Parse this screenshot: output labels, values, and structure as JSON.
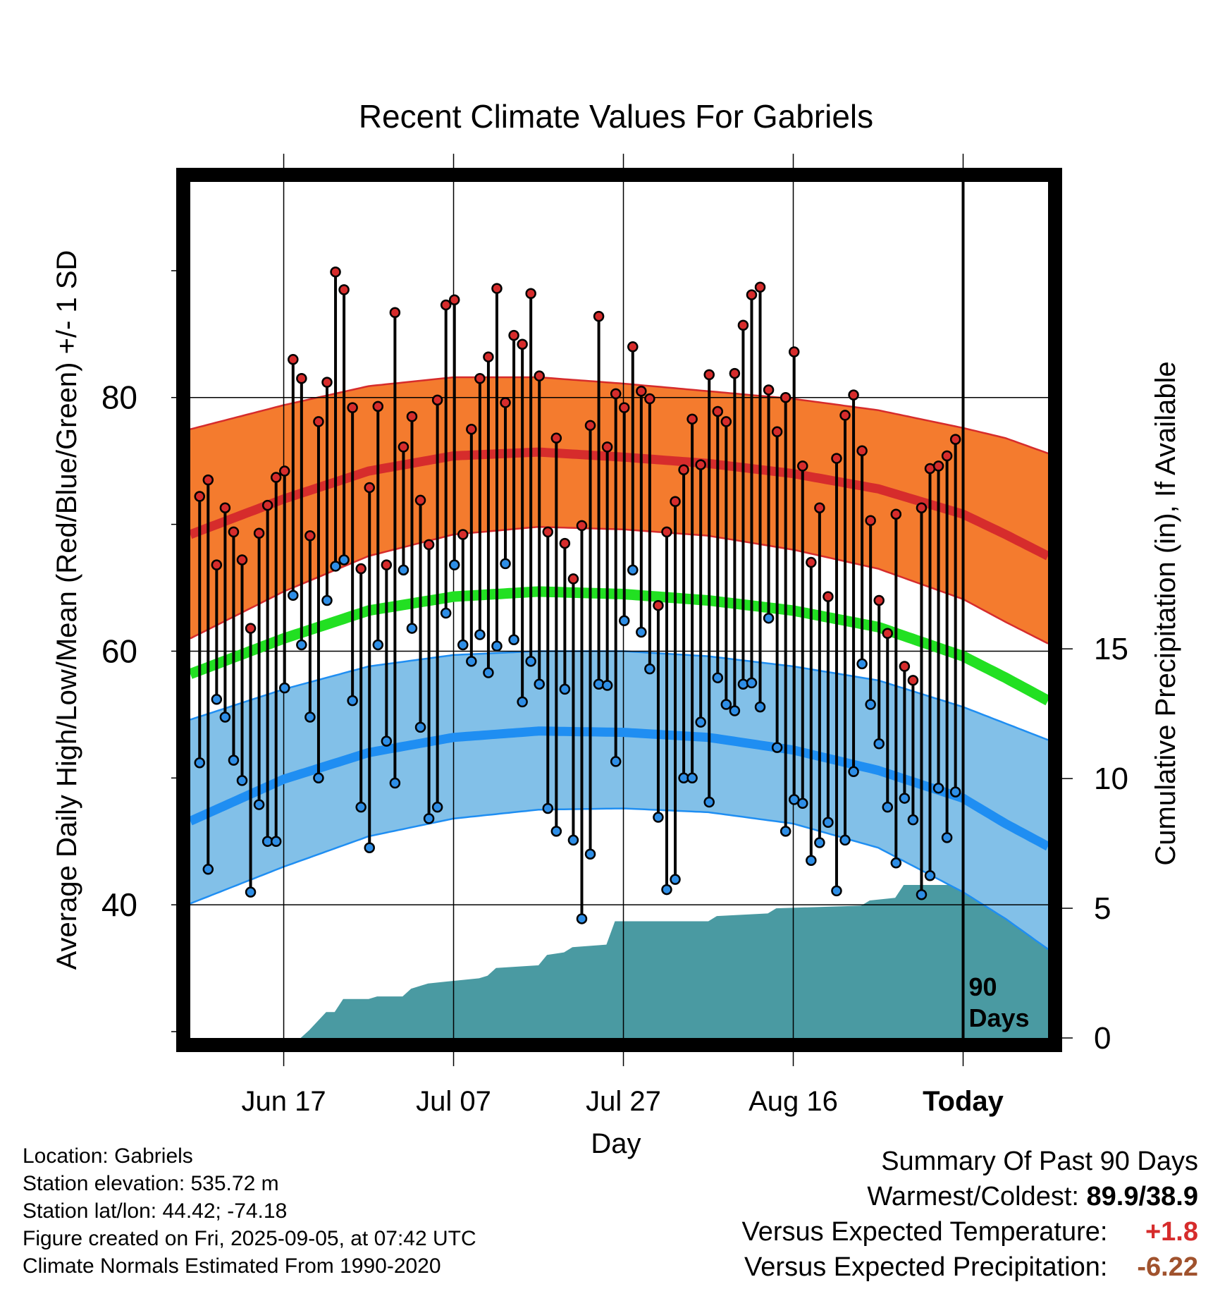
{
  "chart_data": {
    "type": "line",
    "title": "Recent Climate Values For Gabriels",
    "xlabel": "Day",
    "ylabel": "Average Daily High/Low/Mean (Red/Blue/Green) +/- 1 SD",
    "y2label": "Cumulative Precipitation (in), If Available",
    "x_ticks": [
      "Jun 17",
      "Jul 07",
      "Jul 27",
      "Aug 16",
      "Today"
    ],
    "x_tick_days": [
      10,
      30,
      50,
      70,
      90
    ],
    "x_range": [
      -1,
      100
    ],
    "y_ticks": [
      40,
      60,
      80
    ],
    "ylim": [
      29.5,
      97
    ],
    "y2_ticks": [
      0,
      5,
      10,
      15
    ],
    "y2lim": [
      0,
      33
    ],
    "today_label": "90\nDays",
    "series": [
      {
        "name": "Daily High",
        "color": "#d62c2c",
        "values": [
          72.2,
          73.5,
          66.8,
          71.3,
          69.4,
          67.2,
          61.8,
          69.3,
          71.5,
          73.7,
          74.2,
          83.0,
          81.5,
          69.1,
          78.1,
          81.2,
          89.9,
          88.5,
          79.2,
          66.5,
          72.9,
          79.3,
          66.8,
          86.7,
          76.1,
          78.5,
          71.9,
          68.4,
          79.8,
          87.3,
          87.7,
          69.2,
          77.5,
          81.5,
          83.2,
          88.6,
          79.6,
          84.9,
          84.2,
          88.2,
          81.7,
          69.4,
          76.8,
          68.5,
          65.7,
          69.9,
          77.8,
          86.4,
          76.1,
          80.3,
          79.2,
          84.0,
          80.5,
          79.9,
          63.6,
          69.4,
          71.8,
          74.3,
          78.3,
          74.7,
          81.8,
          78.9,
          78.1,
          81.9,
          85.7,
          88.1,
          88.7,
          80.6,
          77.3,
          80.0,
          83.6,
          74.6,
          67.0,
          71.3,
          64.3,
          75.2,
          78.6,
          80.2,
          75.8,
          70.3,
          64.0,
          61.4,
          70.8,
          58.8,
          57.7,
          71.3,
          74.4,
          74.6,
          75.4,
          76.7
        ]
      },
      {
        "name": "Daily Low",
        "color": "#2e8ee6",
        "values": [
          51.2,
          42.8,
          56.2,
          54.8,
          51.4,
          49.8,
          41.0,
          47.9,
          45.0,
          45.0,
          57.1,
          64.4,
          60.5,
          54.8,
          50.0,
          64.0,
          66.7,
          67.2,
          56.1,
          47.7,
          44.5,
          60.5,
          52.9,
          49.6,
          66.4,
          61.8,
          54.0,
          46.8,
          47.7,
          63.0,
          66.8,
          60.5,
          59.2,
          61.3,
          58.3,
          60.4,
          66.9,
          60.9,
          56.0,
          59.2,
          57.4,
          47.6,
          45.8,
          57.0,
          45.1,
          38.9,
          44.0,
          57.4,
          57.3,
          51.3,
          62.4,
          66.4,
          61.5,
          58.6,
          46.9,
          41.2,
          42.0,
          50.0,
          50.0,
          54.4,
          48.1,
          57.9,
          55.8,
          55.3,
          57.4,
          57.5,
          55.6,
          62.6,
          52.4,
          45.8,
          48.3,
          48.0,
          43.5,
          44.9,
          46.5,
          41.1,
          45.1,
          50.5,
          59.0,
          55.8,
          52.7,
          47.7,
          43.3,
          48.4,
          46.7,
          40.8,
          42.3,
          49.2,
          45.3,
          48.9
        ]
      },
      {
        "name": "Expected High (mean +/- 1 SD)",
        "color": "#d62c2c",
        "band_color": "#f47b2e",
        "mean": [
          [
            -1,
            69.2
          ],
          [
            10,
            72.0
          ],
          [
            20,
            74.2
          ],
          [
            30,
            75.4
          ],
          [
            40,
            75.7
          ],
          [
            50,
            75.3
          ],
          [
            60,
            74.8
          ],
          [
            70,
            74.0
          ],
          [
            80,
            72.8
          ],
          [
            90,
            70.8
          ],
          [
            95,
            69.2
          ],
          [
            100,
            67.5
          ]
        ],
        "upper": [
          [
            -1,
            77.5
          ],
          [
            10,
            79.4
          ],
          [
            20,
            80.9
          ],
          [
            30,
            81.6
          ],
          [
            40,
            81.6
          ],
          [
            50,
            81.1
          ],
          [
            60,
            80.5
          ],
          [
            70,
            79.9
          ],
          [
            80,
            79.0
          ],
          [
            90,
            77.6
          ],
          [
            95,
            76.8
          ],
          [
            100,
            75.6
          ]
        ],
        "lower": [
          [
            -1,
            61.0
          ],
          [
            10,
            64.7
          ],
          [
            20,
            67.5
          ],
          [
            30,
            69.2
          ],
          [
            40,
            69.8
          ],
          [
            50,
            69.6
          ],
          [
            60,
            69.1
          ],
          [
            70,
            68.0
          ],
          [
            80,
            66.5
          ],
          [
            90,
            64.1
          ],
          [
            95,
            62.3
          ],
          [
            100,
            60.6
          ]
        ]
      },
      {
        "name": "Expected Mean",
        "color": "#22e022",
        "mean": [
          [
            -1,
            58.2
          ],
          [
            10,
            61.0
          ],
          [
            20,
            63.2
          ],
          [
            30,
            64.3
          ],
          [
            40,
            64.7
          ],
          [
            50,
            64.5
          ],
          [
            60,
            64.0
          ],
          [
            70,
            63.2
          ],
          [
            80,
            61.9
          ],
          [
            90,
            59.6
          ],
          [
            95,
            57.9
          ],
          [
            100,
            56.1
          ]
        ]
      },
      {
        "name": "Expected Low (mean +/- 1 SD)",
        "color": "#1f8ef2",
        "band_color": "#82c0e8",
        "mean": [
          [
            -1,
            46.6
          ],
          [
            10,
            49.9
          ],
          [
            20,
            52.0
          ],
          [
            30,
            53.2
          ],
          [
            40,
            53.7
          ],
          [
            50,
            53.6
          ],
          [
            60,
            53.2
          ],
          [
            70,
            52.2
          ],
          [
            80,
            50.6
          ],
          [
            90,
            48.4
          ],
          [
            95,
            46.4
          ],
          [
            100,
            44.6
          ]
        ],
        "upper": [
          [
            -1,
            54.6
          ],
          [
            10,
            57.0
          ],
          [
            20,
            58.8
          ],
          [
            30,
            59.7
          ],
          [
            40,
            60.0
          ],
          [
            50,
            60.0
          ],
          [
            60,
            59.6
          ],
          [
            70,
            58.8
          ],
          [
            80,
            57.7
          ],
          [
            90,
            55.6
          ],
          [
            95,
            54.3
          ],
          [
            100,
            53.0
          ]
        ],
        "lower": [
          [
            -1,
            40.1
          ],
          [
            10,
            43.0
          ],
          [
            20,
            45.4
          ],
          [
            30,
            46.8
          ],
          [
            40,
            47.5
          ],
          [
            50,
            47.6
          ],
          [
            60,
            47.3
          ],
          [
            70,
            46.4
          ],
          [
            80,
            44.5
          ],
          [
            90,
            41.0
          ],
          [
            95,
            38.9
          ],
          [
            100,
            36.5
          ]
        ]
      },
      {
        "name": "Cumulative Precipitation",
        "axis": "y2",
        "color": "#4a9aa2",
        "steps": [
          [
            -1,
            0.0
          ],
          [
            12,
            0.0
          ],
          [
            13,
            0.3
          ],
          [
            15,
            1.0
          ],
          [
            16,
            1.0
          ],
          [
            17,
            1.5
          ],
          [
            20,
            1.5
          ],
          [
            21,
            1.6
          ],
          [
            24,
            1.6
          ],
          [
            25,
            1.9
          ],
          [
            27,
            2.1
          ],
          [
            33,
            2.3
          ],
          [
            34,
            2.4
          ],
          [
            35,
            2.7
          ],
          [
            40,
            2.8
          ],
          [
            41,
            3.2
          ],
          [
            43,
            3.3
          ],
          [
            44,
            3.5
          ],
          [
            48,
            3.6
          ],
          [
            49,
            4.5
          ],
          [
            60,
            4.5
          ],
          [
            61,
            4.7
          ],
          [
            67,
            4.8
          ],
          [
            68,
            5.0
          ],
          [
            78,
            5.1
          ],
          [
            79,
            5.3
          ],
          [
            82,
            5.4
          ],
          [
            83,
            5.9
          ],
          [
            89,
            5.9
          ],
          [
            90,
            7.0
          ],
          [
            100,
            7.0
          ]
        ]
      }
    ]
  },
  "info": {
    "location": "Location: Gabriels",
    "elevation": "Station elevation: 535.72 m",
    "latlon": "Station lat/lon: 44.42; -74.18",
    "created": "Figure created on Fri, 2025-09-05, at 07:42 UTC",
    "normals": "Climate Normals Estimated From 1990-2020"
  },
  "summary": {
    "heading": "Summary Of Past 90 Days",
    "warmest_label": "Warmest/Coldest:",
    "warmest_value": "89.9/38.9",
    "temp_label": "Versus Expected Temperature:",
    "temp_value": "+1.8",
    "precip_label": "Versus Expected Precipitation:",
    "precip_value": "-6.22"
  }
}
